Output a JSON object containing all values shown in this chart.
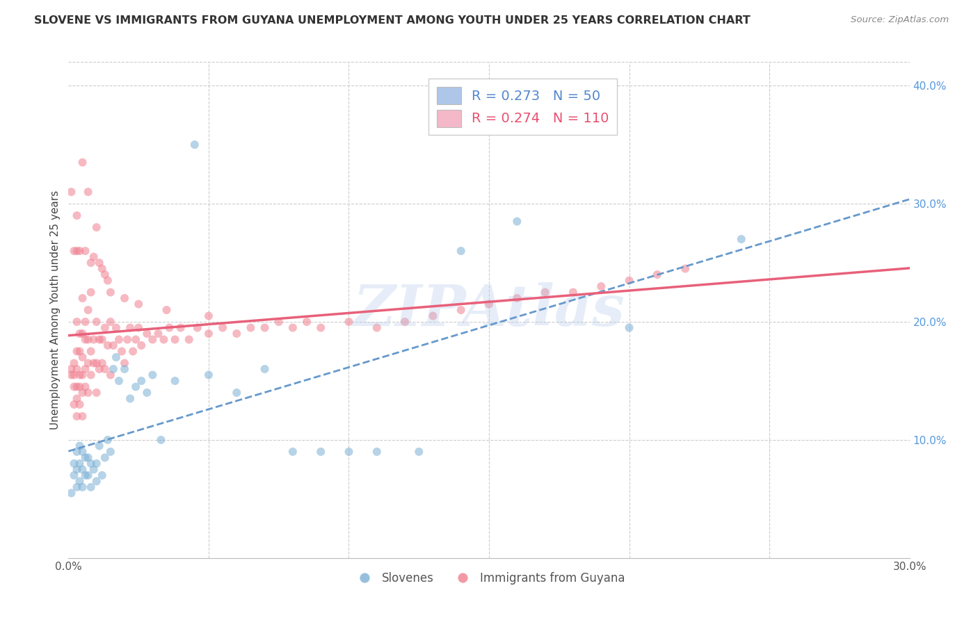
{
  "title": "SLOVENE VS IMMIGRANTS FROM GUYANA UNEMPLOYMENT AMONG YOUTH UNDER 25 YEARS CORRELATION CHART",
  "source": "Source: ZipAtlas.com",
  "ylabel": "Unemployment Among Youth under 25 years",
  "xlim": [
    0.0,
    0.3
  ],
  "ylim": [
    0.0,
    0.42
  ],
  "legend_label1": "R = 0.273   N = 50",
  "legend_label2": "R = 0.274   N = 110",
  "legend_color1": "#aec6e8",
  "legend_color2": "#f4b8c8",
  "scatter_color1": "#7bafd4",
  "scatter_color2": "#f08090",
  "trendline_color1": "#6699cc",
  "trendline_color2": "#e8607a",
  "watermark": "ZIPAtlas",
  "background_color": "#ffffff",
  "grid_color": "#cccccc",
  "slovene_x": [
    0.001,
    0.002,
    0.002,
    0.003,
    0.003,
    0.003,
    0.004,
    0.004,
    0.004,
    0.005,
    0.005,
    0.005,
    0.006,
    0.006,
    0.007,
    0.007,
    0.008,
    0.008,
    0.009,
    0.01,
    0.01,
    0.011,
    0.012,
    0.013,
    0.014,
    0.015,
    0.016,
    0.017,
    0.018,
    0.02,
    0.022,
    0.024,
    0.026,
    0.028,
    0.03,
    0.033,
    0.038,
    0.045,
    0.05,
    0.06,
    0.07,
    0.08,
    0.09,
    0.1,
    0.11,
    0.125,
    0.14,
    0.16,
    0.2,
    0.24
  ],
  "slovene_y": [
    0.055,
    0.07,
    0.08,
    0.06,
    0.075,
    0.09,
    0.065,
    0.08,
    0.095,
    0.06,
    0.075,
    0.09,
    0.07,
    0.085,
    0.07,
    0.085,
    0.06,
    0.08,
    0.075,
    0.065,
    0.08,
    0.095,
    0.07,
    0.085,
    0.1,
    0.09,
    0.16,
    0.17,
    0.15,
    0.16,
    0.135,
    0.145,
    0.15,
    0.14,
    0.155,
    0.1,
    0.15,
    0.35,
    0.155,
    0.14,
    0.16,
    0.09,
    0.09,
    0.09,
    0.09,
    0.09,
    0.26,
    0.285,
    0.195,
    0.27
  ],
  "guyana_x": [
    0.001,
    0.001,
    0.002,
    0.002,
    0.002,
    0.002,
    0.003,
    0.003,
    0.003,
    0.003,
    0.003,
    0.003,
    0.004,
    0.004,
    0.004,
    0.004,
    0.004,
    0.005,
    0.005,
    0.005,
    0.005,
    0.005,
    0.005,
    0.006,
    0.006,
    0.006,
    0.006,
    0.007,
    0.007,
    0.007,
    0.007,
    0.008,
    0.008,
    0.008,
    0.009,
    0.009,
    0.01,
    0.01,
    0.01,
    0.011,
    0.011,
    0.012,
    0.012,
    0.013,
    0.013,
    0.014,
    0.015,
    0.015,
    0.016,
    0.017,
    0.018,
    0.019,
    0.02,
    0.021,
    0.022,
    0.023,
    0.024,
    0.025,
    0.026,
    0.028,
    0.03,
    0.032,
    0.034,
    0.036,
    0.038,
    0.04,
    0.043,
    0.046,
    0.05,
    0.055,
    0.06,
    0.065,
    0.07,
    0.075,
    0.08,
    0.085,
    0.09,
    0.1,
    0.11,
    0.12,
    0.13,
    0.14,
    0.15,
    0.16,
    0.17,
    0.18,
    0.19,
    0.2,
    0.21,
    0.22,
    0.001,
    0.002,
    0.003,
    0.003,
    0.004,
    0.005,
    0.006,
    0.007,
    0.008,
    0.009,
    0.01,
    0.011,
    0.012,
    0.013,
    0.014,
    0.015,
    0.02,
    0.025,
    0.035,
    0.05
  ],
  "guyana_y": [
    0.155,
    0.16,
    0.13,
    0.145,
    0.155,
    0.165,
    0.12,
    0.135,
    0.145,
    0.16,
    0.175,
    0.2,
    0.13,
    0.145,
    0.155,
    0.175,
    0.19,
    0.12,
    0.14,
    0.155,
    0.17,
    0.19,
    0.22,
    0.145,
    0.16,
    0.185,
    0.2,
    0.14,
    0.165,
    0.185,
    0.21,
    0.155,
    0.175,
    0.225,
    0.165,
    0.185,
    0.14,
    0.165,
    0.2,
    0.16,
    0.185,
    0.165,
    0.185,
    0.16,
    0.195,
    0.18,
    0.155,
    0.2,
    0.18,
    0.195,
    0.185,
    0.175,
    0.165,
    0.185,
    0.195,
    0.175,
    0.185,
    0.195,
    0.18,
    0.19,
    0.185,
    0.19,
    0.185,
    0.195,
    0.185,
    0.195,
    0.185,
    0.195,
    0.19,
    0.195,
    0.19,
    0.195,
    0.195,
    0.2,
    0.195,
    0.2,
    0.195,
    0.2,
    0.195,
    0.2,
    0.205,
    0.21,
    0.215,
    0.22,
    0.225,
    0.225,
    0.23,
    0.235,
    0.24,
    0.245,
    0.31,
    0.26,
    0.29,
    0.26,
    0.26,
    0.335,
    0.26,
    0.31,
    0.25,
    0.255,
    0.28,
    0.25,
    0.245,
    0.24,
    0.235,
    0.225,
    0.22,
    0.215,
    0.21,
    0.205
  ]
}
